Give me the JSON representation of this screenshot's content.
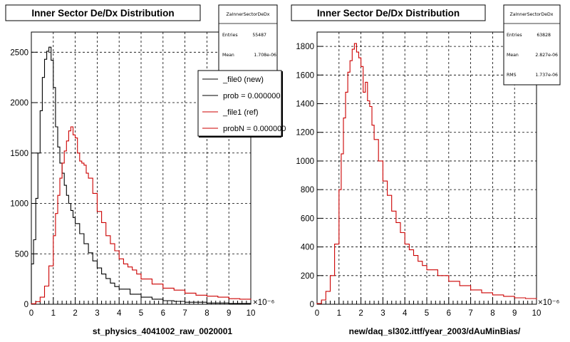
{
  "chart_data": [
    {
      "type": "line",
      "title": "Inner Sector De/Dx Distribution",
      "xlabel": "st_physics_4041002_raw_0020001",
      "x_exponent": "×10⁻⁶",
      "xlim": [
        0,
        10
      ],
      "ylim": [
        0,
        2700
      ],
      "grid": true,
      "x_ticks": [
        "0",
        "1",
        "2",
        "3",
        "4",
        "5",
        "6",
        "7",
        "8",
        "9",
        "10"
      ],
      "y_ticks": [
        "0",
        "500",
        "1000",
        "1500",
        "2000",
        "2500"
      ],
      "stats": {
        "title": "ZaInnerSectorDeDx",
        "rows": [
          {
            "label": "Entries",
            "value": "55487"
          },
          {
            "label": "Mean",
            "value": "1.708e-06"
          }
        ]
      },
      "legend": {
        "placement": "top-right",
        "entries": [
          {
            "label": "_file0 (new)",
            "color": "#000000"
          },
          {
            "label": "prob = 0.000000",
            "color": "#000000"
          },
          {
            "label": "_file1 (ref)",
            "color": "#cc0000"
          },
          {
            "label": "probN = 0.000000",
            "color": "#cc0000"
          }
        ]
      },
      "series": [
        {
          "name": "_file0 (new)",
          "color": "#000000",
          "x": [
            0.0,
            0.1,
            0.2,
            0.3,
            0.4,
            0.5,
            0.6,
            0.7,
            0.8,
            0.9,
            1.0,
            1.1,
            1.2,
            1.3,
            1.4,
            1.5,
            1.6,
            1.7,
            1.8,
            1.9,
            2.0,
            2.2,
            2.4,
            2.6,
            2.8,
            3.0,
            3.2,
            3.4,
            3.6,
            3.8,
            4.0,
            4.5,
            5.0,
            5.5,
            6.0,
            6.5,
            7.0,
            8.0,
            9.0,
            10.0
          ],
          "y": [
            400,
            640,
            1050,
            1500,
            1920,
            2250,
            2430,
            2510,
            2550,
            2420,
            2150,
            1760,
            1560,
            1400,
            1300,
            1180,
            1080,
            1000,
            930,
            860,
            800,
            700,
            600,
            510,
            430,
            360,
            300,
            255,
            210,
            175,
            150,
            100,
            70,
            50,
            35,
            28,
            20,
            12,
            8,
            5
          ]
        },
        {
          "name": "_file1 (ref)",
          "color": "#cc0000",
          "x": [
            0.0,
            0.2,
            0.4,
            0.6,
            0.8,
            1.0,
            1.1,
            1.2,
            1.3,
            1.4,
            1.5,
            1.6,
            1.7,
            1.8,
            1.9,
            2.0,
            2.1,
            2.2,
            2.3,
            2.4,
            2.5,
            2.6,
            2.8,
            3.0,
            3.2,
            3.4,
            3.6,
            3.8,
            4.0,
            4.2,
            4.4,
            4.6,
            4.8,
            5.0,
            5.5,
            6.0,
            6.5,
            7.0,
            7.5,
            8.0,
            8.5,
            9.0,
            9.5,
            10.0
          ],
          "y": [
            5,
            25,
            70,
            180,
            380,
            680,
            900,
            1080,
            1250,
            1400,
            1520,
            1620,
            1720,
            1760,
            1680,
            1650,
            1500,
            1420,
            1400,
            1380,
            1300,
            1250,
            1100,
            920,
            810,
            680,
            600,
            530,
            450,
            400,
            370,
            340,
            300,
            250,
            200,
            160,
            140,
            110,
            90,
            80,
            70,
            55,
            50,
            45
          ]
        }
      ]
    },
    {
      "type": "line",
      "title": "Inner Sector De/Dx Distribution",
      "xlabel": "new/daq_sl302.ittf/year_2003/dAuMinBias/",
      "x_exponent": "×10⁻⁶",
      "xlim": [
        0,
        10
      ],
      "ylim": [
        0,
        1900
      ],
      "grid": true,
      "x_ticks": [
        "0",
        "1",
        "2",
        "3",
        "4",
        "5",
        "6",
        "7",
        "8",
        "9",
        "10"
      ],
      "y_ticks": [
        "0",
        "200",
        "400",
        "600",
        "800",
        "1000",
        "1200",
        "1400",
        "1600",
        "1800"
      ],
      "stats": {
        "title": "ZaInnerSectorDeDx",
        "rows": [
          {
            "label": "Entries",
            "value": "63828"
          },
          {
            "label": "Mean",
            "value": "2.827e-06"
          },
          {
            "label": "RMS",
            "value": "1.737e-06"
          }
        ]
      },
      "series": [
        {
          "name": "",
          "color": "#cc0000",
          "x": [
            0.0,
            0.2,
            0.4,
            0.6,
            0.8,
            1.0,
            1.1,
            1.2,
            1.3,
            1.4,
            1.5,
            1.6,
            1.7,
            1.8,
            1.9,
            2.0,
            2.1,
            2.2,
            2.3,
            2.4,
            2.5,
            2.6,
            2.8,
            3.0,
            3.2,
            3.4,
            3.6,
            3.8,
            4.0,
            4.2,
            4.4,
            4.6,
            4.8,
            5.0,
            5.5,
            6.0,
            6.5,
            7.0,
            7.5,
            8.0,
            8.5,
            9.0,
            9.5,
            10.0
          ],
          "y": [
            5,
            30,
            90,
            200,
            420,
            800,
            1050,
            1300,
            1480,
            1620,
            1700,
            1780,
            1820,
            1760,
            1720,
            1660,
            1480,
            1550,
            1420,
            1380,
            1250,
            1150,
            1000,
            860,
            760,
            650,
            570,
            500,
            420,
            380,
            340,
            300,
            270,
            240,
            200,
            160,
            130,
            100,
            80,
            65,
            55,
            45,
            40,
            35
          ]
        }
      ]
    }
  ],
  "x_exponent_label": "×10⁻⁶"
}
